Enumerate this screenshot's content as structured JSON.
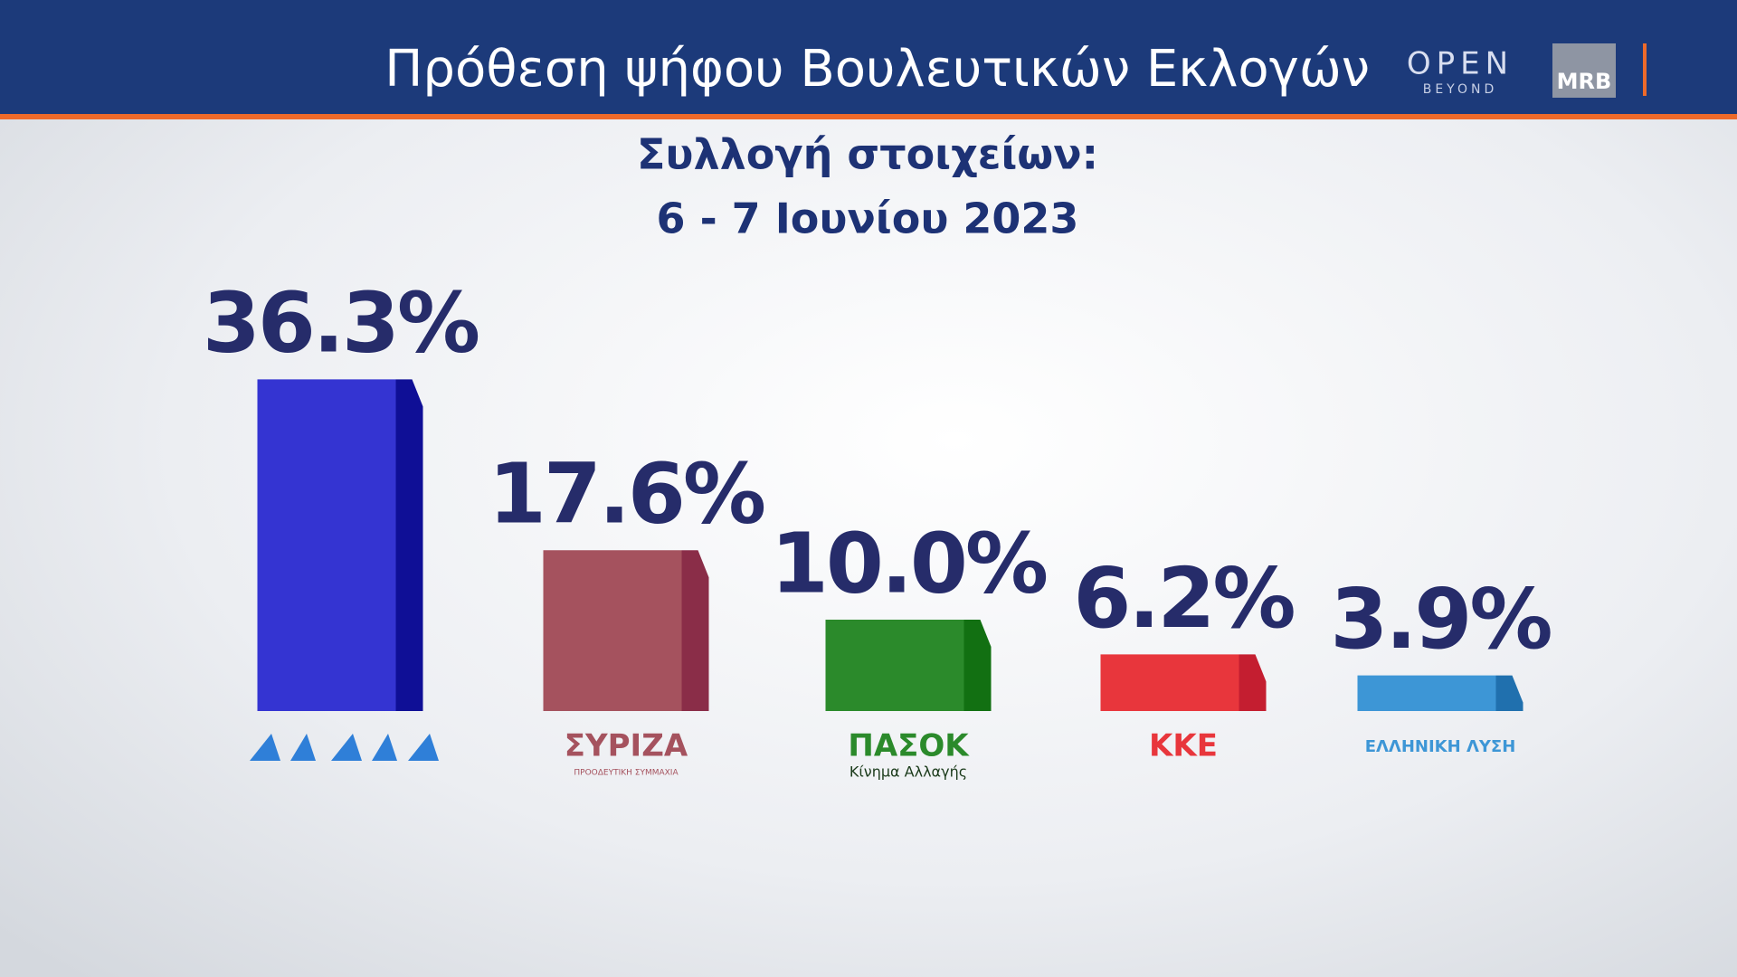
{
  "header": {
    "title": "Πρόθεση ψήφου Βουλευτικών Εκλογών",
    "logo": "OPEN",
    "logo_tagline": "BEYOND",
    "pollster": "MRB"
  },
  "chart_data": {
    "type": "bar",
    "subtitle": [
      "Συλλογή στοιχείων:",
      "6 - 7 Ιουνίου 2023"
    ],
    "categories": [
      null,
      "ΣΥΡΙΖΑ",
      "ΠΑΣΟΚ",
      "ΚΚΕ",
      "ΕΛΛΗΝΙΚΗ ΛΥΣΗ"
    ],
    "category_sublabels": [
      null,
      "ΠΡΟΟΔΕΥΤΙΚΗ ΣΥΜΜΑΧΙΑ",
      "Κίνημα Αλλαγής",
      null,
      null
    ],
    "values": [
      36.3,
      17.6,
      10.0,
      6.2,
      3.9
    ],
    "value_labels": [
      "36.3%",
      "17.6%",
      "10.0%",
      "6.2%",
      "3.9%"
    ],
    "colors": [
      "#3434d2",
      "#a5525e",
      "#2b8a2b",
      "#e8363c",
      "#3d96d6"
    ],
    "side_colors": [
      "#0f0f96",
      "#8a2d48",
      "#127012",
      "#c41e30",
      "#2070ae"
    ]
  }
}
